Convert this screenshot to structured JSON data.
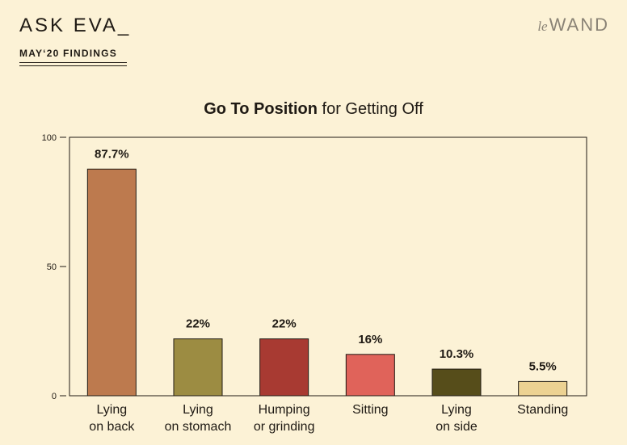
{
  "header": {
    "brand_title": "ASK EVA_",
    "subtitle": "MAY‘20 FINDINGS",
    "logo_prefix": "le",
    "logo_word": "WAND"
  },
  "chart_data": {
    "type": "bar",
    "title_bold": "Go To Position",
    "title_rest": "for Getting Off",
    "categories": [
      [
        "Lying",
        "on back"
      ],
      [
        "Lying",
        "on stomach"
      ],
      [
        "Humping",
        "or grinding"
      ],
      [
        "Sitting"
      ],
      [
        "Lying",
        "on side"
      ],
      [
        "Standing"
      ]
    ],
    "values": [
      87.7,
      22,
      22,
      16,
      10.3,
      5.5
    ],
    "data_labels": [
      "87.7%",
      "22%",
      "22%",
      "16%",
      "10.3%",
      "5.5%"
    ],
    "colors": [
      "#bd7a4e",
      "#9c8c42",
      "#a83a32",
      "#e0635a",
      "#564d1a",
      "#ecd292"
    ],
    "ylim": [
      0,
      100
    ],
    "yticks": [
      0,
      50,
      100
    ],
    "grid": false,
    "legend": "none"
  }
}
